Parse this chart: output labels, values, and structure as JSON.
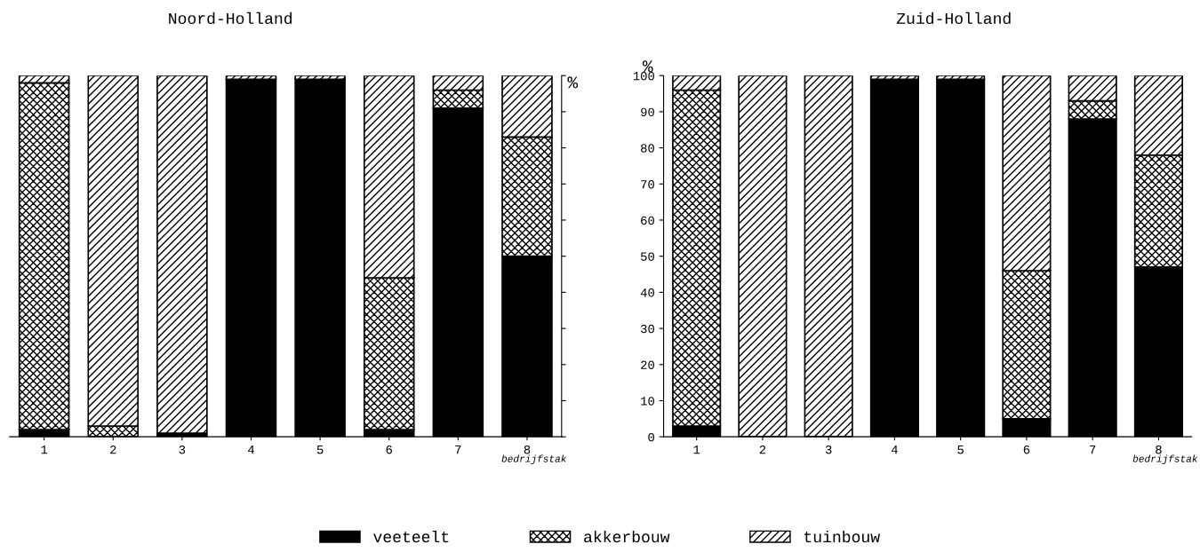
{
  "chart_data": [
    {
      "type": "bar",
      "title": "Noord-Holland",
      "xlabel": "bedrijfstak",
      "ylabel": "%",
      "categories": [
        "1",
        "2",
        "3",
        "4",
        "5",
        "6",
        "7",
        "8"
      ],
      "stacked": true,
      "ylim": [
        0,
        100
      ],
      "yticks": [
        {
          "value": 0,
          "label": null
        },
        {
          "value": 10,
          "label": null
        },
        {
          "value": 20,
          "label": null
        },
        {
          "value": 30,
          "label": null
        },
        {
          "value": 40,
          "label": null
        },
        {
          "value": 50,
          "label": null
        },
        {
          "value": 60,
          "label": null
        },
        {
          "value": 70,
          "label": null
        },
        {
          "value": 80,
          "label": null
        },
        {
          "value": 90,
          "label": null
        },
        {
          "value": 100,
          "label": null
        }
      ],
      "tick_labels": "x",
      "grid": false,
      "legend": "bottom",
      "series": [
        {
          "name": "veeteelt",
          "color": "#000000",
          "values": [
            2,
            0,
            1,
            99,
            99,
            2,
            91,
            50
          ]
        },
        {
          "name": "akkerbouw",
          "color": "#000000",
          "values": [
            96,
            3,
            0,
            0,
            0,
            42,
            5,
            33
          ]
        },
        {
          "name": "tuinbouw",
          "color": "#000000",
          "values": [
            2,
            97,
            99,
            1,
            1,
            56,
            4,
            17
          ]
        }
      ]
    },
    {
      "type": "bar",
      "title": "Zuid-Holland",
      "xlabel": "bedrijfstak",
      "ylabel": "%",
      "categories": [
        "1",
        "2",
        "3",
        "4",
        "5",
        "6",
        "7",
        "8"
      ],
      "stacked": true,
      "ylim": [
        0,
        100
      ],
      "yticks": [
        0,
        10,
        20,
        30,
        40,
        50,
        60,
        70,
        80,
        90,
        100
      ],
      "grid": false,
      "series": [
        {
          "color": "#000000",
          "values": [
            3,
            0,
            0,
            99,
            99,
            5,
            88,
            47
          ]
        },
        {
          "color": "#000000",
          "values": [
            93,
            0,
            0,
            0,
            0,
            41,
            5,
            31
          ]
        },
        {
          "color": "#000000",
          "values": [
            4,
            100,
            100,
            1,
            1,
            54,
            7,
            22
          ]
        }
      ]
    }
  ]
}
